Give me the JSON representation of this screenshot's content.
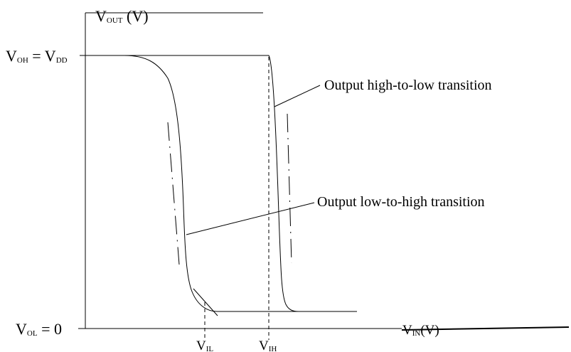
{
  "figure": {
    "y_axis": {
      "main": "V",
      "sub": "OUT",
      "unit": " (V)"
    },
    "x_axis": {
      "main": "V",
      "sub": "IN",
      "unit": "(V)"
    },
    "voh": {
      "a": "V",
      "a_sub": "OH",
      "eq": " = ",
      "b": "V",
      "b_sub": "DD"
    },
    "vol": {
      "a": "V",
      "a_sub": "OL",
      "eq": " = 0"
    },
    "vil": {
      "main": "V",
      "sub": "IL"
    },
    "vih": {
      "main": "V",
      "sub": "IH"
    },
    "annotations": {
      "high_to_low": "Output high-to-low transition",
      "low_to_high": "Output low-to-high transition"
    },
    "colors": {
      "ink": "#000000",
      "background": "#ffffff"
    }
  }
}
